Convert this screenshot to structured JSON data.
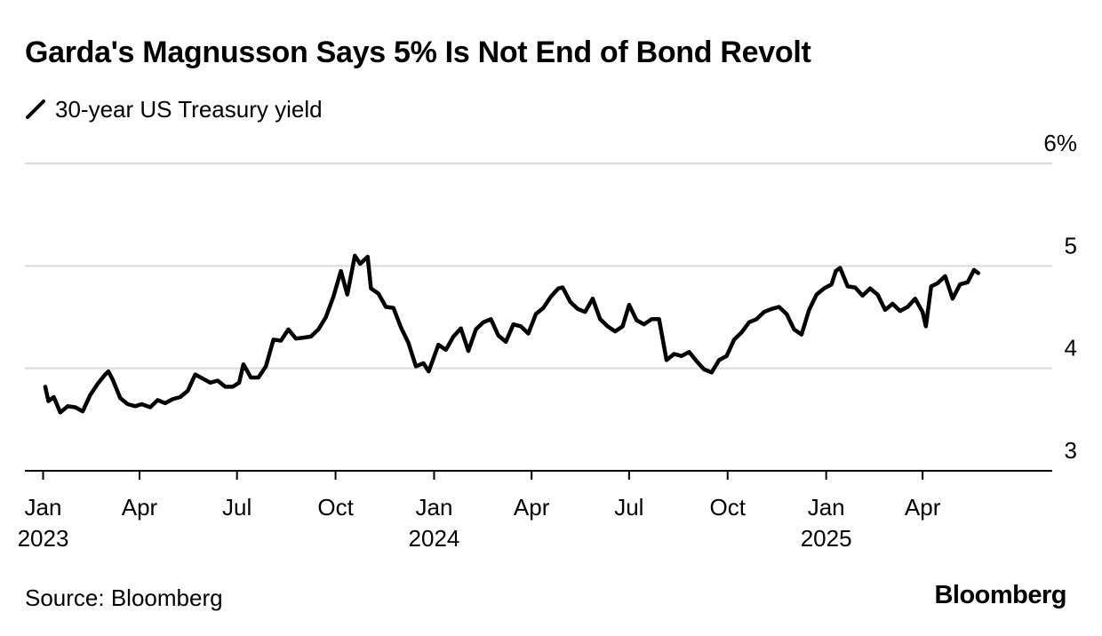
{
  "title": "Garda's Magnusson Says 5% Is Not End of Bond Revolt",
  "legend": {
    "label": "30-year US Treasury yield",
    "color": "#000000"
  },
  "source": "Source: Bloomberg",
  "brand": "Bloomberg",
  "chart_data": {
    "type": "line",
    "title": "Garda's Magnusson Says 5% Is Not End of Bond Revolt",
    "xlabel": "",
    "ylabel": "",
    "ylim": [
      3,
      6
    ],
    "xlim": [
      "2022-12-15",
      "2025-07-31"
    ],
    "grid": true,
    "legend_position": "top-left",
    "y_ticks": [
      {
        "value": 6,
        "label": "6%"
      },
      {
        "value": 5,
        "label": "5"
      },
      {
        "value": 4,
        "label": "4"
      },
      {
        "value": 3,
        "label": "3"
      }
    ],
    "x_ticks": [
      {
        "date": "2023-01-01",
        "label": "Jan",
        "year": "2023"
      },
      {
        "date": "2023-04-01",
        "label": "Apr",
        "year": ""
      },
      {
        "date": "2023-07-01",
        "label": "Jul",
        "year": ""
      },
      {
        "date": "2023-10-01",
        "label": "Oct",
        "year": ""
      },
      {
        "date": "2024-01-01",
        "label": "Jan",
        "year": "2024"
      },
      {
        "date": "2024-04-01",
        "label": "Apr",
        "year": ""
      },
      {
        "date": "2024-07-01",
        "label": "Jul",
        "year": ""
      },
      {
        "date": "2024-10-01",
        "label": "Oct",
        "year": ""
      },
      {
        "date": "2025-01-01",
        "label": "Jan",
        "year": "2025"
      },
      {
        "date": "2025-04-01",
        "label": "Apr",
        "year": ""
      }
    ],
    "series": [
      {
        "name": "30-year US Treasury yield",
        "color": "#000000",
        "points": [
          [
            "2023-01-03",
            3.82
          ],
          [
            "2023-01-06",
            3.68
          ],
          [
            "2023-01-11",
            3.72
          ],
          [
            "2023-01-17",
            3.57
          ],
          [
            "2023-01-24",
            3.63
          ],
          [
            "2023-01-31",
            3.62
          ],
          [
            "2023-02-07",
            3.58
          ],
          [
            "2023-02-14",
            3.74
          ],
          [
            "2023-02-21",
            3.85
          ],
          [
            "2023-02-28",
            3.94
          ],
          [
            "2023-03-03",
            3.97
          ],
          [
            "2023-03-07",
            3.89
          ],
          [
            "2023-03-14",
            3.71
          ],
          [
            "2023-03-21",
            3.65
          ],
          [
            "2023-03-28",
            3.63
          ],
          [
            "2023-04-03",
            3.65
          ],
          [
            "2023-04-11",
            3.62
          ],
          [
            "2023-04-18",
            3.69
          ],
          [
            "2023-04-25",
            3.66
          ],
          [
            "2023-05-02",
            3.7
          ],
          [
            "2023-05-09",
            3.72
          ],
          [
            "2023-05-16",
            3.78
          ],
          [
            "2023-05-23",
            3.94
          ],
          [
            "2023-05-30",
            3.9
          ],
          [
            "2023-06-06",
            3.86
          ],
          [
            "2023-06-13",
            3.88
          ],
          [
            "2023-06-20",
            3.82
          ],
          [
            "2023-06-27",
            3.82
          ],
          [
            "2023-07-03",
            3.86
          ],
          [
            "2023-07-07",
            4.04
          ],
          [
            "2023-07-14",
            3.91
          ],
          [
            "2023-07-21",
            3.91
          ],
          [
            "2023-07-28",
            4.02
          ],
          [
            "2023-08-04",
            4.28
          ],
          [
            "2023-08-11",
            4.27
          ],
          [
            "2023-08-18",
            4.38
          ],
          [
            "2023-08-25",
            4.29
          ],
          [
            "2023-09-01",
            4.3
          ],
          [
            "2023-09-08",
            4.31
          ],
          [
            "2023-09-15",
            4.38
          ],
          [
            "2023-09-22",
            4.5
          ],
          [
            "2023-09-29",
            4.7
          ],
          [
            "2023-10-06",
            4.95
          ],
          [
            "2023-10-12",
            4.72
          ],
          [
            "2023-10-19",
            5.1
          ],
          [
            "2023-10-24",
            5.02
          ],
          [
            "2023-10-31",
            5.09
          ],
          [
            "2023-11-03",
            4.78
          ],
          [
            "2023-11-10",
            4.73
          ],
          [
            "2023-11-17",
            4.6
          ],
          [
            "2023-11-24",
            4.59
          ],
          [
            "2023-12-01",
            4.4
          ],
          [
            "2023-12-08",
            4.25
          ],
          [
            "2023-12-15",
            4.02
          ],
          [
            "2023-12-22",
            4.05
          ],
          [
            "2023-12-27",
            3.97
          ],
          [
            "2024-01-05",
            4.23
          ],
          [
            "2024-01-12",
            4.18
          ],
          [
            "2024-01-19",
            4.31
          ],
          [
            "2024-01-26",
            4.39
          ],
          [
            "2024-02-02",
            4.17
          ],
          [
            "2024-02-09",
            4.38
          ],
          [
            "2024-02-16",
            4.45
          ],
          [
            "2024-02-23",
            4.48
          ],
          [
            "2024-03-01",
            4.32
          ],
          [
            "2024-03-08",
            4.26
          ],
          [
            "2024-03-15",
            4.43
          ],
          [
            "2024-03-22",
            4.41
          ],
          [
            "2024-03-29",
            4.34
          ],
          [
            "2024-04-05",
            4.53
          ],
          [
            "2024-04-12",
            4.59
          ],
          [
            "2024-04-19",
            4.7
          ],
          [
            "2024-04-26",
            4.78
          ],
          [
            "2024-04-30",
            4.79
          ],
          [
            "2024-05-07",
            4.65
          ],
          [
            "2024-05-14",
            4.58
          ],
          [
            "2024-05-21",
            4.55
          ],
          [
            "2024-05-28",
            4.68
          ],
          [
            "2024-06-04",
            4.48
          ],
          [
            "2024-06-11",
            4.41
          ],
          [
            "2024-06-18",
            4.36
          ],
          [
            "2024-06-25",
            4.41
          ],
          [
            "2024-07-01",
            4.62
          ],
          [
            "2024-07-08",
            4.47
          ],
          [
            "2024-07-15",
            4.43
          ],
          [
            "2024-07-22",
            4.48
          ],
          [
            "2024-07-29",
            4.48
          ],
          [
            "2024-08-05",
            4.08
          ],
          [
            "2024-08-12",
            4.14
          ],
          [
            "2024-08-19",
            4.12
          ],
          [
            "2024-08-26",
            4.16
          ],
          [
            "2024-09-02",
            4.07
          ],
          [
            "2024-09-09",
            3.99
          ],
          [
            "2024-09-16",
            3.96
          ],
          [
            "2024-09-23",
            4.08
          ],
          [
            "2024-09-30",
            4.12
          ],
          [
            "2024-10-07",
            4.28
          ],
          [
            "2024-10-14",
            4.35
          ],
          [
            "2024-10-21",
            4.45
          ],
          [
            "2024-10-28",
            4.48
          ],
          [
            "2024-11-04",
            4.55
          ],
          [
            "2024-11-11",
            4.58
          ],
          [
            "2024-11-18",
            4.6
          ],
          [
            "2024-11-25",
            4.53
          ],
          [
            "2024-12-02",
            4.38
          ],
          [
            "2024-12-09",
            4.33
          ],
          [
            "2024-12-16",
            4.57
          ],
          [
            "2024-12-23",
            4.72
          ],
          [
            "2024-12-30",
            4.78
          ],
          [
            "2025-01-06",
            4.82
          ],
          [
            "2025-01-10",
            4.95
          ],
          [
            "2025-01-14",
            4.98
          ],
          [
            "2025-01-21",
            4.8
          ],
          [
            "2025-01-28",
            4.79
          ],
          [
            "2025-02-04",
            4.71
          ],
          [
            "2025-02-11",
            4.78
          ],
          [
            "2025-02-18",
            4.72
          ],
          [
            "2025-02-25",
            4.57
          ],
          [
            "2025-03-04",
            4.63
          ],
          [
            "2025-03-11",
            4.56
          ],
          [
            "2025-03-18",
            4.6
          ],
          [
            "2025-03-25",
            4.68
          ],
          [
            "2025-04-01",
            4.55
          ],
          [
            "2025-04-04",
            4.41
          ],
          [
            "2025-04-09",
            4.8
          ],
          [
            "2025-04-15",
            4.83
          ],
          [
            "2025-04-22",
            4.9
          ],
          [
            "2025-04-29",
            4.68
          ],
          [
            "2025-05-06",
            4.82
          ],
          [
            "2025-05-13",
            4.84
          ],
          [
            "2025-05-19",
            4.96
          ],
          [
            "2025-05-23",
            4.93
          ]
        ]
      }
    ]
  }
}
